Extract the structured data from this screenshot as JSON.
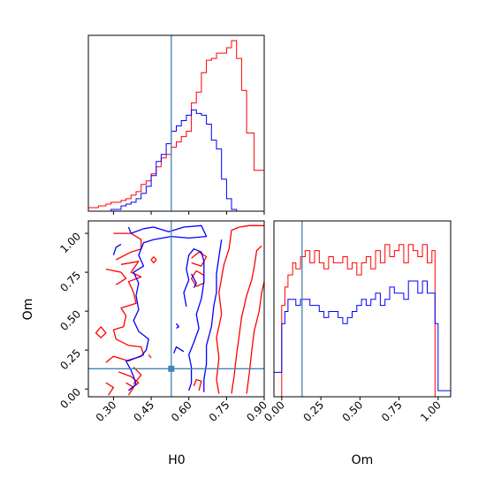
{
  "chart_data": {
    "type": "corner",
    "parameters": [
      "H0",
      "Om"
    ],
    "truths": {
      "H0": 0.53,
      "Om": 0.13
    },
    "colors": {
      "red": "#ff0000",
      "blue": "#0000ff",
      "truth": "#4682b4"
    },
    "series": [
      {
        "color": "#ff0000"
      },
      {
        "color": "#0000ff"
      }
    ],
    "axes": {
      "H0": {
        "range": [
          0.2,
          0.9
        ],
        "ticks": [
          0.3,
          0.45,
          0.6,
          0.75,
          0.9
        ],
        "tick_labels": [
          "0.30",
          "0.45",
          "0.60",
          "0.75",
          "0.90"
        ],
        "label": "H0"
      },
      "Om": {
        "range": [
          -0.05,
          1.08
        ],
        "ticks": [
          0.0,
          0.25,
          0.5,
          0.75,
          1.0
        ],
        "tick_labels": [
          "0.00",
          "0.25",
          "0.50",
          "0.75",
          "1.00"
        ],
        "label": "Om"
      }
    },
    "hist_H0": {
      "x": [
        0.2,
        0.24,
        0.27,
        0.29,
        0.31,
        0.33,
        0.35,
        0.37,
        0.39,
        0.41,
        0.43,
        0.45,
        0.47,
        0.49,
        0.51,
        0.53,
        0.55,
        0.57,
        0.59,
        0.61,
        0.63,
        0.65,
        0.67,
        0.69,
        0.71,
        0.73,
        0.75,
        0.77,
        0.79,
        0.81,
        0.83,
        0.86,
        0.9
      ],
      "red": [
        0.02,
        0.03,
        0.04,
        0.05,
        0.05,
        0.06,
        0.07,
        0.09,
        0.11,
        0.15,
        0.17,
        0.21,
        0.25,
        0.3,
        0.32,
        0.36,
        0.39,
        0.42,
        0.45,
        0.61,
        0.67,
        0.78,
        0.85,
        0.86,
        0.89,
        0.89,
        0.92,
        0.96,
        0.86,
        0.68,
        0.44,
        0.23,
        0.1
      ],
      "blue": [
        0.0,
        0.0,
        0.0,
        0.01,
        0.01,
        0.03,
        0.04,
        0.05,
        0.07,
        0.1,
        0.14,
        0.2,
        0.28,
        0.32,
        0.38,
        0.45,
        0.48,
        0.51,
        0.54,
        0.57,
        0.55,
        0.54,
        0.49,
        0.4,
        0.35,
        0.18,
        0.07,
        0.01,
        0.0,
        0.0,
        0.0,
        0.0,
        0.0
      ]
    },
    "hist_Om": {
      "x": [
        -0.05,
        0.0,
        0.02,
        0.04,
        0.07,
        0.09,
        0.12,
        0.15,
        0.18,
        0.21,
        0.24,
        0.27,
        0.3,
        0.33,
        0.36,
        0.39,
        0.42,
        0.45,
        0.48,
        0.51,
        0.54,
        0.57,
        0.6,
        0.63,
        0.66,
        0.69,
        0.72,
        0.75,
        0.78,
        0.81,
        0.84,
        0.87,
        0.9,
        0.93,
        0.96,
        0.98,
        1.0,
        1.08
      ],
      "red": [
        0.0,
        0.15,
        0.18,
        0.2,
        0.22,
        0.21,
        0.23,
        0.24,
        0.22,
        0.24,
        0.22,
        0.21,
        0.23,
        0.22,
        0.22,
        0.23,
        0.21,
        0.22,
        0.2,
        0.22,
        0.23,
        0.21,
        0.24,
        0.22,
        0.25,
        0.23,
        0.24,
        0.25,
        0.22,
        0.25,
        0.24,
        0.23,
        0.25,
        0.22,
        0.24,
        0.0,
        0.0,
        0.0
      ],
      "blue": [
        0.04,
        0.12,
        0.14,
        0.16,
        0.16,
        0.15,
        0.16,
        0.16,
        0.15,
        0.15,
        0.14,
        0.13,
        0.14,
        0.14,
        0.13,
        0.12,
        0.13,
        0.14,
        0.15,
        0.16,
        0.15,
        0.16,
        0.17,
        0.15,
        0.16,
        0.18,
        0.17,
        0.17,
        0.16,
        0.19,
        0.19,
        0.17,
        0.19,
        0.17,
        0.17,
        0.12,
        0.01,
        0.01
      ]
    },
    "contours": [
      {
        "color": "#ff0000",
        "paths": [
          [
            [
              0.3,
              1.0
            ],
            [
              0.37,
              1.0
            ],
            [
              0.41,
              0.96
            ],
            [
              0.41,
              0.9
            ],
            [
              0.37,
              0.88
            ],
            [
              0.31,
              0.83
            ]
          ],
          [
            [
              0.33,
              0.8
            ],
            [
              0.4,
              0.82
            ],
            [
              0.37,
              0.75
            ],
            [
              0.41,
              0.72
            ],
            [
              0.36,
              0.69
            ],
            [
              0.38,
              0.62
            ],
            [
              0.39,
              0.55
            ],
            [
              0.33,
              0.52
            ],
            [
              0.35,
              0.47
            ],
            [
              0.34,
              0.4
            ],
            [
              0.3,
              0.38
            ],
            [
              0.31,
              0.32
            ],
            [
              0.36,
              0.28
            ],
            [
              0.41,
              0.27
            ],
            [
              0.42,
              0.22
            ],
            [
              0.36,
              0.18
            ],
            [
              0.3,
              0.21
            ],
            [
              0.27,
              0.17
            ]
          ],
          [
            [
              0.27,
              0.77
            ],
            [
              0.33,
              0.75
            ],
            [
              0.35,
              0.71
            ],
            [
              0.31,
              0.67
            ]
          ],
          [
            [
              0.32,
              0.11
            ],
            [
              0.37,
              0.08
            ],
            [
              0.4,
              0.04
            ],
            [
              0.36,
              -0.01
            ]
          ],
          [
            [
              0.27,
              0.04
            ],
            [
              0.3,
              0.01
            ],
            [
              0.28,
              -0.04
            ]
          ],
          [
            [
              0.35,
              0.04
            ],
            [
              0.38,
              0.01
            ],
            [
              0.36,
              -0.04
            ]
          ],
          [
            [
              0.38,
              0.14
            ],
            [
              0.41,
              0.09
            ],
            [
              0.38,
              0.03
            ]
          ],
          [
            [
              0.25,
              0.4
            ],
            [
              0.27,
              0.36
            ],
            [
              0.25,
              0.33
            ],
            [
              0.23,
              0.36
            ],
            [
              0.25,
              0.4
            ]
          ],
          [
            [
              0.46,
              0.85
            ],
            [
              0.47,
              0.83
            ],
            [
              0.46,
              0.81
            ],
            [
              0.45,
              0.83
            ],
            [
              0.46,
              0.85
            ]
          ],
          [
            [
              0.44,
              0.22
            ],
            [
              0.45,
              0.2
            ]
          ],
          [
            [
              0.61,
              0.84
            ],
            [
              0.64,
              0.88
            ],
            [
              0.67,
              0.85
            ],
            [
              0.65,
              0.79
            ],
            [
              0.61,
              0.81
            ]
          ],
          [
            [
              0.63,
              0.76
            ],
            [
              0.66,
              0.73
            ],
            [
              0.66,
              0.68
            ],
            [
              0.63,
              0.66
            ],
            [
              0.61,
              0.71
            ],
            [
              0.63,
              0.76
            ]
          ],
          [
            [
              0.72,
              -0.03
            ],
            [
              0.71,
              0.06
            ],
            [
              0.72,
              0.2
            ],
            [
              0.71,
              0.33
            ],
            [
              0.73,
              0.48
            ],
            [
              0.72,
              0.62
            ],
            [
              0.74,
              0.8
            ],
            [
              0.76,
              0.9
            ],
            [
              0.77,
              1.02
            ],
            [
              0.8,
              1.04
            ],
            [
              0.84,
              1.05
            ],
            [
              0.9,
              1.05
            ]
          ],
          [
            [
              0.77,
              -0.03
            ],
            [
              0.78,
              0.08
            ],
            [
              0.79,
              0.22
            ],
            [
              0.8,
              0.34
            ],
            [
              0.81,
              0.46
            ],
            [
              0.83,
              0.6
            ],
            [
              0.85,
              0.7
            ],
            [
              0.86,
              0.78
            ],
            [
              0.87,
              0.89
            ],
            [
              0.89,
              0.92
            ]
          ],
          [
            [
              0.83,
              -0.03
            ],
            [
              0.84,
              0.09
            ],
            [
              0.85,
              0.24
            ],
            [
              0.86,
              0.37
            ],
            [
              0.88,
              0.5
            ],
            [
              0.89,
              0.62
            ],
            [
              0.9,
              0.69
            ]
          ],
          [
            [
              0.62,
              0.02
            ],
            [
              0.63,
              0.06
            ],
            [
              0.65,
              0.05
            ],
            [
              0.64,
              -0.01
            ]
          ]
        ]
      },
      {
        "color": "#0000ff",
        "paths": [
          [
            [
              0.36,
              1.04
            ],
            [
              0.37,
              1.0
            ],
            [
              0.42,
              1.03
            ],
            [
              0.46,
              1.04
            ],
            [
              0.52,
              1.01
            ],
            [
              0.58,
              1.04
            ],
            [
              0.65,
              1.05
            ],
            [
              0.67,
              0.98
            ],
            [
              0.6,
              0.97
            ],
            [
              0.53,
              0.98
            ],
            [
              0.46,
              0.96
            ],
            [
              0.42,
              0.94
            ],
            [
              0.4,
              0.86
            ],
            [
              0.42,
              0.79
            ],
            [
              0.38,
              0.75
            ],
            [
              0.4,
              0.68
            ],
            [
              0.39,
              0.6
            ],
            [
              0.4,
              0.51
            ],
            [
              0.38,
              0.44
            ],
            [
              0.4,
              0.37
            ],
            [
              0.44,
              0.32
            ],
            [
              0.43,
              0.25
            ],
            [
              0.41,
              0.21
            ],
            [
              0.35,
              0.18
            ],
            [
              0.37,
              0.12
            ],
            [
              0.38,
              0.08
            ],
            [
              0.39,
              0.03
            ],
            [
              0.36,
              -0.01
            ]
          ],
          [
            [
              0.59,
              0.53
            ],
            [
              0.58,
              0.62
            ],
            [
              0.6,
              0.7
            ],
            [
              0.59,
              0.77
            ],
            [
              0.6,
              0.86
            ],
            [
              0.62,
              0.9
            ],
            [
              0.65,
              0.88
            ],
            [
              0.66,
              0.82
            ],
            [
              0.66,
              0.69
            ],
            [
              0.65,
              0.58
            ],
            [
              0.63,
              0.48
            ],
            [
              0.64,
              0.39
            ],
            [
              0.62,
              0.3
            ],
            [
              0.6,
              0.22
            ],
            [
              0.61,
              0.14
            ],
            [
              0.61,
              0.04
            ],
            [
              0.6,
              -0.01
            ]
          ],
          [
            [
              0.61,
              0.74
            ],
            [
              0.63,
              0.68
            ],
            [
              0.62,
              0.65
            ]
          ],
          [
            [
              0.54,
              0.23
            ],
            [
              0.55,
              0.27
            ],
            [
              0.58,
              0.24
            ]
          ],
          [
            [
              0.55,
              0.42
            ],
            [
              0.56,
              0.4
            ],
            [
              0.55,
              0.39
            ]
          ],
          [
            [
              0.66,
              -0.02
            ],
            [
              0.66,
              0.06
            ],
            [
              0.67,
              0.16
            ],
            [
              0.67,
              0.28
            ],
            [
              0.69,
              0.4
            ],
            [
              0.7,
              0.54
            ],
            [
              0.71,
              0.62
            ],
            [
              0.71,
              0.74
            ],
            [
              0.72,
              0.85
            ],
            [
              0.73,
              0.96
            ]
          ],
          [
            [
              0.3,
              0.86
            ],
            [
              0.31,
              0.91
            ],
            [
              0.33,
              0.93
            ]
          ]
        ]
      }
    ]
  }
}
